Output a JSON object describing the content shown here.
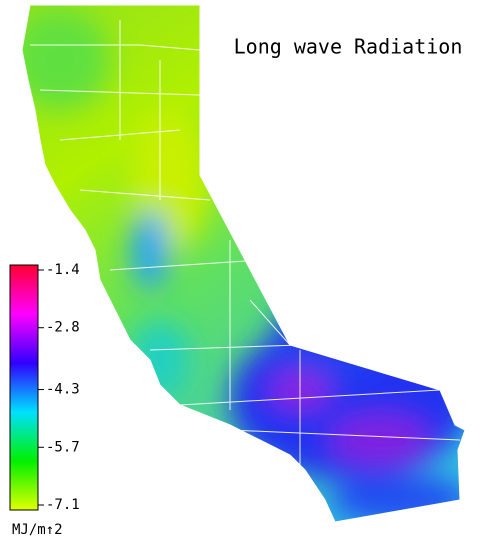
{
  "title": "Long wave Radiation",
  "colorbar": {
    "range": [
      -7.1,
      -1.4
    ],
    "ticks": [
      -1.4,
      -2.8,
      -4.3,
      -5.7,
      -7.1
    ],
    "unit": "MJ/m↑2"
  }
}
